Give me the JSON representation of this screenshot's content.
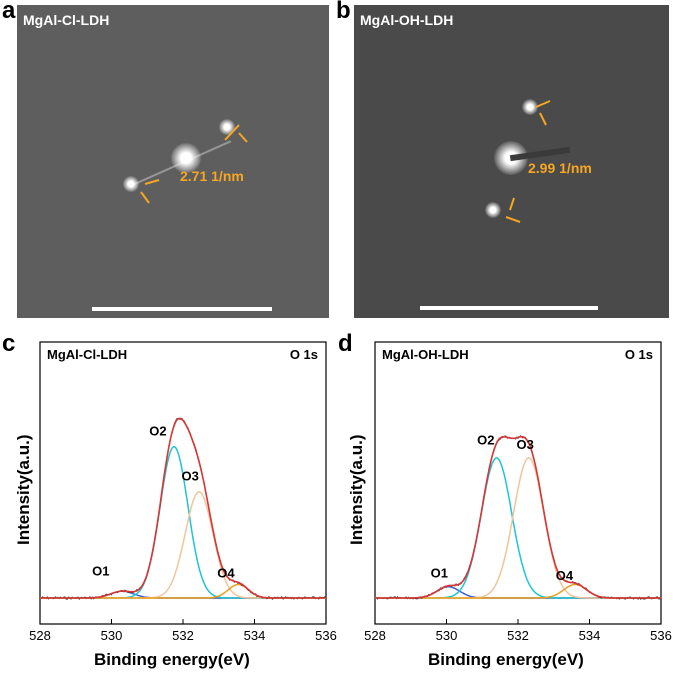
{
  "panels": {
    "a": {
      "letter": "a",
      "label": "MgAl-Cl-LDH",
      "distance": "2.71 1/nm"
    },
    "b": {
      "letter": "b",
      "label": "MgAl-OH-LDH",
      "distance": "2.99 1/nm"
    },
    "c": {
      "letter": "c",
      "label": "MgAl-Cl-LDH",
      "core": "O 1s"
    },
    "d": {
      "letter": "d",
      "label": "MgAl-OH-LDH",
      "core": "O 1s"
    }
  },
  "colors": {
    "envelope": "#d93636",
    "raw": "#404040",
    "o2": "#1fc4d4",
    "o3": "#f2c49b",
    "o1": "#3f5fcf",
    "o4": "#e8a020",
    "baseline": "#e8a020",
    "annotation": "#f5a623"
  },
  "chart_data": [
    {
      "type": "line",
      "panel": "c",
      "title": "",
      "xlabel": "Binding energy(eV)",
      "ylabel": "Intensity(a.u.)",
      "xlim": [
        528,
        536
      ],
      "xticks": [
        528,
        530,
        532,
        534,
        536
      ],
      "peaks": [
        {
          "name": "O1",
          "center": 530.3,
          "height": 0.03,
          "width": 0.45
        },
        {
          "name": "O2",
          "center": 531.75,
          "height": 0.67,
          "width": 0.55
        },
        {
          "name": "O3",
          "center": 532.45,
          "height": 0.47,
          "width": 0.55
        },
        {
          "name": "O4",
          "center": 533.55,
          "height": 0.06,
          "width": 0.4
        }
      ],
      "peak_labels": [
        {
          "text": "O1",
          "x": 529.7,
          "y": 0.1
        },
        {
          "text": "O2",
          "x": 531.3,
          "y": 0.72
        },
        {
          "text": "O3",
          "x": 532.2,
          "y": 0.52
        },
        {
          "text": "O4",
          "x": 533.2,
          "y": 0.09
        }
      ],
      "ymax": 1.0
    },
    {
      "type": "line",
      "panel": "d",
      "title": "",
      "xlabel": "Binding energy(eV)",
      "ylabel": "Intensity(a.u.)",
      "xlim": [
        528,
        536
      ],
      "xticks": [
        528,
        530,
        532,
        534,
        536
      ],
      "peaks": [
        {
          "name": "O1",
          "center": 530.05,
          "height": 0.05,
          "width": 0.45
        },
        {
          "name": "O2",
          "center": 531.4,
          "height": 0.62,
          "width": 0.6
        },
        {
          "name": "O3",
          "center": 532.3,
          "height": 0.62,
          "width": 0.6
        },
        {
          "name": "O4",
          "center": 533.6,
          "height": 0.06,
          "width": 0.45
        }
      ],
      "peak_labels": [
        {
          "text": "O1",
          "x": 529.8,
          "y": 0.09
        },
        {
          "text": "O2",
          "x": 531.1,
          "y": 0.68
        },
        {
          "text": "O3",
          "x": 532.2,
          "y": 0.66
        },
        {
          "text": "O4",
          "x": 533.3,
          "y": 0.08
        }
      ],
      "ymax": 1.0
    }
  ]
}
